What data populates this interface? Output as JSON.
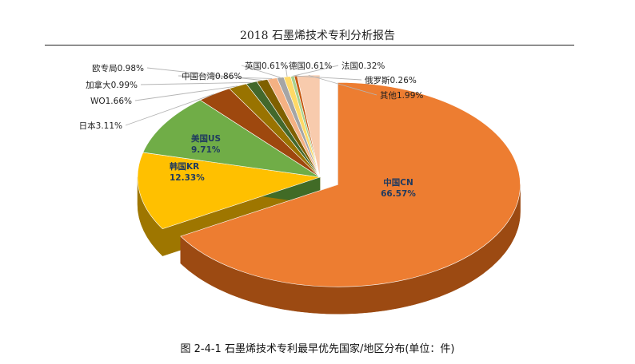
{
  "page": {
    "header": "2018 石墨烯技术专利分析报告",
    "caption": "图 2-4-1  石墨烯技术专利最早优先国家/地区分布(单位：件)"
  },
  "chart_data": {
    "type": "pie",
    "three_d": true,
    "unit": "%",
    "slices": [
      {
        "name": "中国CN",
        "value": 66.57,
        "label": "66.57%",
        "color": "#ED7D31",
        "side": "#9C4A12",
        "exploded": true,
        "label_inside": true
      },
      {
        "name": "韩国KR",
        "value": 12.33,
        "label": "12.33%",
        "color": "#FFC000",
        "side": "#9E7600",
        "label_inside": true
      },
      {
        "name": "美国US",
        "value": 9.71,
        "label": "9.71%",
        "color": "#70AD47",
        "side": "#416B26",
        "label_inside": true
      },
      {
        "name": "日本",
        "value": 3.11,
        "label": "3.11%",
        "color": "#9E480E",
        "side": "#5E2A08"
      },
      {
        "name": "WO",
        "value": 1.66,
        "label": "1.66%",
        "color": "#997300",
        "side": "#5C4500"
      },
      {
        "name": "加拿大",
        "value": 0.99,
        "label": "0.99%",
        "color": "#43682B",
        "side": "#283E1A"
      },
      {
        "name": "欧专局",
        "value": 0.98,
        "label": "0.98%",
        "color": "#7F6000",
        "side": "#4C3A00"
      },
      {
        "name": "中国台湾",
        "value": 0.86,
        "label": "0.86%",
        "color": "#F4B183",
        "side": "#B07650"
      },
      {
        "name": "英国",
        "value": 0.61,
        "label": "0.61%",
        "color": "#A5A5A5",
        "side": "#6B6B6B"
      },
      {
        "name": "德国",
        "value": 0.61,
        "label": "0.61%",
        "color": "#FFD966",
        "side": "#B3963E"
      },
      {
        "name": "法国",
        "value": 0.32,
        "label": "0.32%",
        "color": "#A9D18E",
        "side": "#6D8F58"
      },
      {
        "name": "俄罗斯",
        "value": 0.26,
        "label": "0.26%",
        "color": "#C55A11",
        "side": "#7A370A"
      },
      {
        "name": "其他",
        "value": 1.99,
        "label": "1.99%",
        "color": "#F8CBAD",
        "side": "#B88F74"
      }
    ]
  }
}
